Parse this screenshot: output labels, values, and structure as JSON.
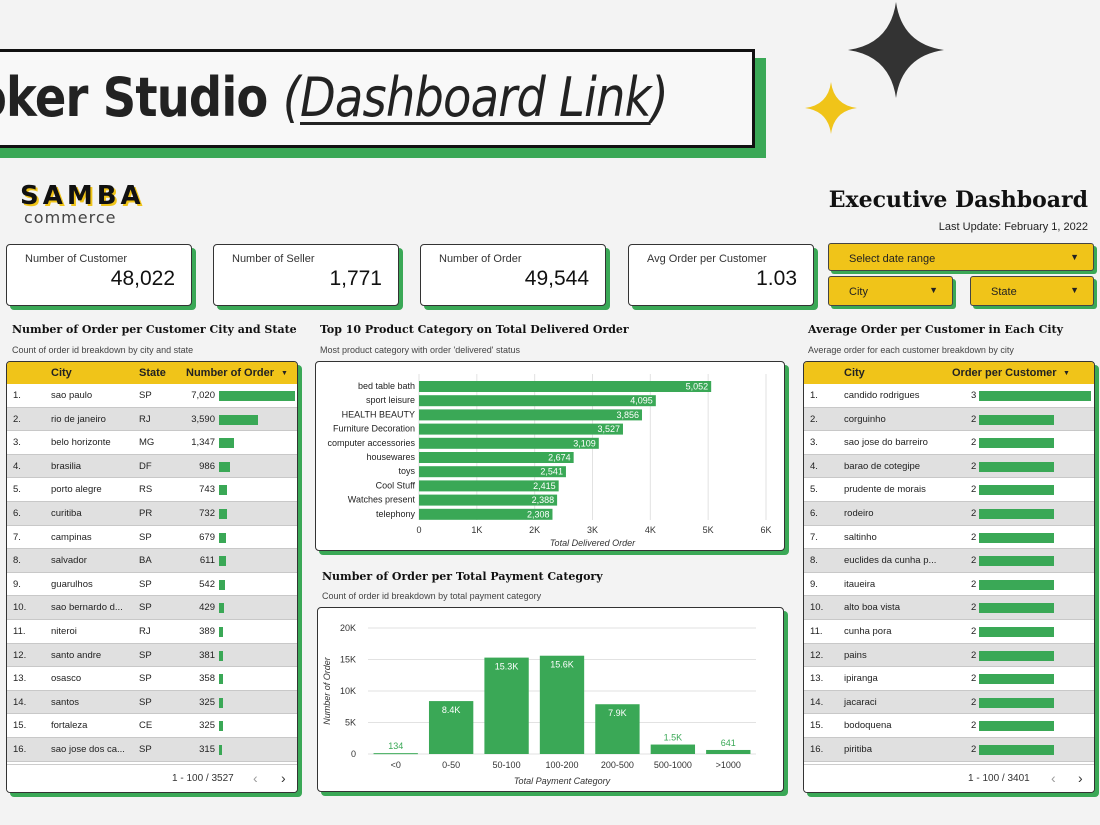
{
  "banner": {
    "title_bold": "oker Studio",
    "paren_open": "(",
    "link": "Dashboard Link",
    "paren_close": ")"
  },
  "logo": {
    "top": "SAMBA",
    "bottom": "commerce"
  },
  "header": {
    "title": "Executive Dashboard",
    "last_update": "Last Update: February 1, 2022"
  },
  "kpis": [
    {
      "label": "Number of Customer",
      "value": "48,022"
    },
    {
      "label": "Number of Seller",
      "value": "1,771"
    },
    {
      "label": "Number of Order",
      "value": "49,544"
    },
    {
      "label": "Avg Order per Customer",
      "value": "1.03"
    }
  ],
  "filters": {
    "date": "Select date range",
    "city": "City",
    "state": "State"
  },
  "colors": {
    "accent_green": "#3aa856",
    "accent_yellow": "#f0c419",
    "dark": "#333333"
  },
  "city_table": {
    "title": "Number of Order per Customer City and State",
    "subtitle": "Count of order id breakdown by city and state",
    "headers": {
      "city": "City",
      "state": "State",
      "orders": "Number of Order",
      "sort": "▼"
    },
    "rows": [
      {
        "n": "1.",
        "city": "sao paulo",
        "state": "SP",
        "orders": "7,020",
        "v": 7020
      },
      {
        "n": "2.",
        "city": "rio de janeiro",
        "state": "RJ",
        "orders": "3,590",
        "v": 3590
      },
      {
        "n": "3.",
        "city": "belo horizonte",
        "state": "MG",
        "orders": "1,347",
        "v": 1347
      },
      {
        "n": "4.",
        "city": "brasilia",
        "state": "DF",
        "orders": "986",
        "v": 986
      },
      {
        "n": "5.",
        "city": "porto alegre",
        "state": "RS",
        "orders": "743",
        "v": 743
      },
      {
        "n": "6.",
        "city": "curitiba",
        "state": "PR",
        "orders": "732",
        "v": 732
      },
      {
        "n": "7.",
        "city": "campinas",
        "state": "SP",
        "orders": "679",
        "v": 679
      },
      {
        "n": "8.",
        "city": "salvador",
        "state": "BA",
        "orders": "611",
        "v": 611
      },
      {
        "n": "9.",
        "city": "guarulhos",
        "state": "SP",
        "orders": "542",
        "v": 542
      },
      {
        "n": "10.",
        "city": "sao bernardo d...",
        "state": "SP",
        "orders": "429",
        "v": 429
      },
      {
        "n": "11.",
        "city": "niteroi",
        "state": "RJ",
        "orders": "389",
        "v": 389
      },
      {
        "n": "12.",
        "city": "santo andre",
        "state": "SP",
        "orders": "381",
        "v": 381
      },
      {
        "n": "13.",
        "city": "osasco",
        "state": "SP",
        "orders": "358",
        "v": 358
      },
      {
        "n": "14.",
        "city": "santos",
        "state": "SP",
        "orders": "325",
        "v": 325
      },
      {
        "n": "15.",
        "city": "fortaleza",
        "state": "CE",
        "orders": "325",
        "v": 325
      },
      {
        "n": "16.",
        "city": "sao jose dos ca...",
        "state": "SP",
        "orders": "315",
        "v": 315
      }
    ],
    "pagination": "1 - 100 / 3527"
  },
  "avg_table": {
    "title": "Average Order per Customer in Each City",
    "subtitle": "Average order for each customer breakdown by city",
    "headers": {
      "city": "City",
      "orders": "Order per Customer",
      "sort": "▼"
    },
    "rows": [
      {
        "n": "1.",
        "city": "candido rodrigues",
        "orders": "3",
        "v": 3
      },
      {
        "n": "2.",
        "city": "corguinho",
        "orders": "2",
        "v": 2
      },
      {
        "n": "3.",
        "city": "sao jose do barreiro",
        "orders": "2",
        "v": 2
      },
      {
        "n": "4.",
        "city": "barao de cotegipe",
        "orders": "2",
        "v": 2
      },
      {
        "n": "5.",
        "city": "prudente de morais",
        "orders": "2",
        "v": 2
      },
      {
        "n": "6.",
        "city": "rodeiro",
        "orders": "2",
        "v": 2
      },
      {
        "n": "7.",
        "city": "saltinho",
        "orders": "2",
        "v": 2
      },
      {
        "n": "8.",
        "city": "euclides da cunha p...",
        "orders": "2",
        "v": 2
      },
      {
        "n": "9.",
        "city": "itaueira",
        "orders": "2",
        "v": 2
      },
      {
        "n": "10.",
        "city": "alto boa vista",
        "orders": "2",
        "v": 2
      },
      {
        "n": "11.",
        "city": "cunha pora",
        "orders": "2",
        "v": 2
      },
      {
        "n": "12.",
        "city": "pains",
        "orders": "2",
        "v": 2
      },
      {
        "n": "13.",
        "city": "ipiranga",
        "orders": "2",
        "v": 2
      },
      {
        "n": "14.",
        "city": "jacaraci",
        "orders": "2",
        "v": 2
      },
      {
        "n": "15.",
        "city": "bodoquena",
        "orders": "2",
        "v": 2
      },
      {
        "n": "16.",
        "city": "piritiba",
        "orders": "2",
        "v": 2
      }
    ],
    "pagination": "1 - 100 / 3401"
  },
  "product_section": {
    "title": "Top 10 Product Category on Total Delivered Order",
    "subtitle": "Most product category with order 'delivered' status"
  },
  "payment_section": {
    "title": "Number of Order per Total Payment Category",
    "subtitle": "Count of order id breakdown by total payment category"
  },
  "chart_data": [
    {
      "type": "bar",
      "orientation": "horizontal",
      "categories": [
        "bed table bath",
        "sport leisure",
        "HEALTH BEAUTY",
        "Furniture Decoration",
        "computer accessories",
        "housewares",
        "toys",
        "Cool Stuff",
        "Watches present",
        "telephony"
      ],
      "values": [
        5052,
        4095,
        3856,
        3527,
        3109,
        2674,
        2541,
        2415,
        2388,
        2308
      ],
      "value_labels": [
        "5,052",
        "4,095",
        "3,856",
        "3,527",
        "3,109",
        "2,674",
        "2,541",
        "2,415",
        "2,388",
        "2,308"
      ],
      "xlabel": "Total Delivered Order",
      "xlim": [
        0,
        6000
      ],
      "xticks": [
        "0",
        "1K",
        "2K",
        "3K",
        "4K",
        "5K",
        "6K"
      ],
      "grid": true
    },
    {
      "type": "bar",
      "categories": [
        "<0",
        "0-50",
        "50-100",
        "100-200",
        "200-500",
        "500-1000",
        ">1000"
      ],
      "values": [
        134,
        8400,
        15300,
        15600,
        7900,
        1500,
        641
      ],
      "value_labels": [
        "134",
        "8.4K",
        "15.3K",
        "15.6K",
        "7.9K",
        "1.5K",
        "641"
      ],
      "xlabel": "Total Payment Category",
      "ylabel": "Number of Order",
      "ylim": [
        0,
        20000
      ],
      "yticks": [
        "0",
        "5K",
        "10K",
        "15K",
        "20K"
      ],
      "grid": true
    }
  ]
}
